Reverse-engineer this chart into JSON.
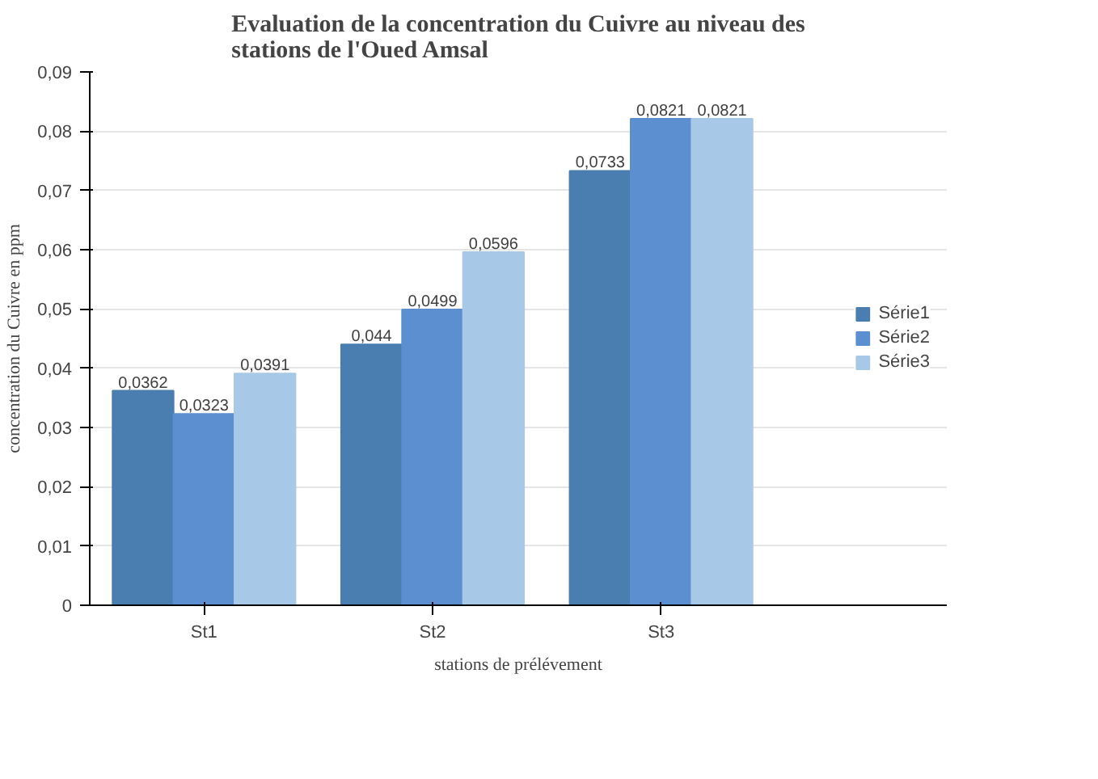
{
  "chart_data": {
    "type": "bar",
    "title": "Evaluation de la concentration du Cuivre au niveau des\nstations de l'Oued Amsal",
    "xlabel": "stations de prélévement",
    "ylabel": "concentration du Cuivre en ppm",
    "categories": [
      "St1",
      "St2",
      "St3"
    ],
    "series": [
      {
        "name": "Série1",
        "color": "#4a7db0",
        "values": [
          0.0362,
          0.044,
          0.0733
        ],
        "value_labels": [
          "0,0362",
          "0,044",
          "0,0733"
        ]
      },
      {
        "name": "Série2",
        "color": "#5b8fcf",
        "values": [
          0.0323,
          0.0499,
          0.0821
        ],
        "value_labels": [
          "0,0323",
          "0,0499",
          "0,0821"
        ]
      },
      {
        "name": "Série3",
        "color": "#a8c8e8",
        "values": [
          0.0391,
          0.0596,
          0.0821
        ],
        "value_labels": [
          "0,0391",
          "0,0596",
          "0,0821"
        ]
      }
    ],
    "ylim": [
      0,
      0.09
    ],
    "yticks": [
      {
        "value": 0,
        "label": "0"
      },
      {
        "value": 0.01,
        "label": "0,01"
      },
      {
        "value": 0.02,
        "label": "0,02"
      },
      {
        "value": 0.03,
        "label": "0,03"
      },
      {
        "value": 0.04,
        "label": "0,04"
      },
      {
        "value": 0.05,
        "label": "0,05"
      },
      {
        "value": 0.06,
        "label": "0,06"
      },
      {
        "value": 0.07,
        "label": "0,07"
      },
      {
        "value": 0.08,
        "label": "0,08"
      },
      {
        "value": 0.09,
        "label": "0,09"
      }
    ],
    "grid": "y",
    "legend": "right"
  }
}
